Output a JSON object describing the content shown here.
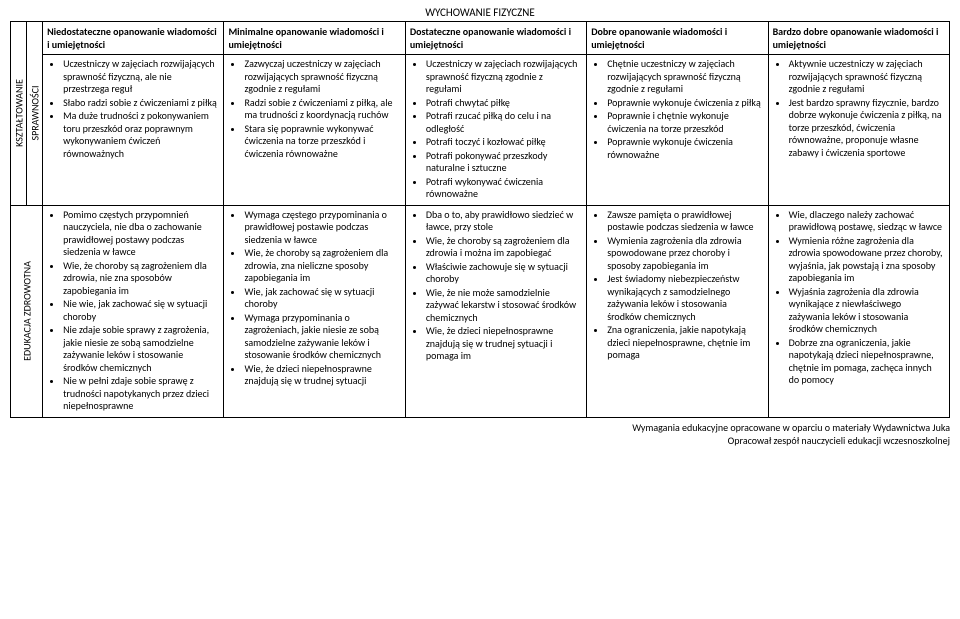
{
  "title": "WYCHOWANIE FIZYCZNE",
  "section_labels": {
    "row1a": "KSZTAŁTOWANIE",
    "row1b": "SPRAWNOŚCI",
    "row2": "EDUKACJA ZDROWOTNA"
  },
  "headers": {
    "c1": "Niedostateczne opanowanie wiadomości i umiejętności",
    "c2": "Minimalne opanowanie wiadomości i umiejętności",
    "c3": "Dostateczne opanowanie wiadomości i umiejętności",
    "c4": "Dobre opanowanie wiadomości i umiejętności",
    "c5": "Bardzo dobre opanowanie wiadomości i umiejętności"
  },
  "row1": {
    "c1": [
      "Uczestniczy w zajęciach rozwijających sprawność fizyczną, ale nie przestrzega reguł",
      "Słabo radzi sobie z ćwiczeniami z piłką",
      "Ma duże trudności z pokonywaniem toru przeszkód oraz poprawnym wykonywaniem ćwiczeń równoważnych"
    ],
    "c2": [
      "Zazwyczaj uczestniczy w zajęciach rozwijających sprawność fizyczną zgodnie z regułami",
      "Radzi sobie z ćwiczeniami z piłką, ale ma trudności z koordynacją ruchów",
      "Stara się poprawnie wykonywać ćwiczenia na torze przeszkód i ćwiczenia równoważne"
    ],
    "c3": [
      "Uczestniczy w zajęciach rozwijających sprawność fizyczną zgodnie z regułami",
      "Potrafi chwytać piłkę",
      "Potrafi rzucać piłką do celu i na odległość",
      "Potrafi toczyć i kozłować piłkę",
      "Potrafi pokonywać przeszkody naturalne i sztuczne",
      "Potrafi wykonywać ćwiczenia równoważne"
    ],
    "c4": [
      "Chętnie uczestniczy w zajęciach rozwijających sprawność fizyczną zgodnie z regułami",
      "Poprawnie wykonuje ćwiczenia z piłką",
      "Poprawnie i chętnie wykonuje ćwiczenia na torze przeszkód",
      "Poprawnie wykonuje ćwiczenia równoważne"
    ],
    "c5": [
      "Aktywnie uczestniczy w zajęciach rozwijających sprawność fizyczną zgodnie z regułami",
      "Jest bardzo sprawny fizycznie, bardzo dobrze wykonuje ćwiczenia z piłką, na torze przeszkód, ćwiczenia równoważne, proponuje własne zabawy i ćwiczenia sportowe"
    ]
  },
  "row2": {
    "c1": [
      "Pomimo częstych przypomnień nauczyciela, nie dba o zachowanie prawidłowej postawy podczas siedzenia w ławce",
      "Wie, że choroby są zagrożeniem dla zdrowia, nie zna sposobów zapobiegania im",
      "Nie wie, jak zachować się w sytuacji choroby",
      "Nie zdaje sobie sprawy z zagrożenia, jakie niesie ze sobą samodzielne zażywanie leków i stosowanie środków chemicznych",
      "Nie w pełni zdaje sobie sprawę z trudności napotykanych przez dzieci niepełnosprawne"
    ],
    "c2": [
      "Wymaga częstego przypominania o prawidłowej postawie podczas siedzenia w ławce",
      "Wie, że choroby są zagrożeniem dla zdrowia, zna nieliczne sposoby zapobiegania im",
      "Wie, jak zachować się w sytuacji choroby",
      "Wymaga przypominania o zagrożeniach, jakie niesie ze sobą samodzielne zażywanie leków i stosowanie środków chemicznych",
      "Wie, że dzieci niepełnosprawne znajdują się w trudnej sytuacji"
    ],
    "c3": [
      "Dba o to, aby prawidłowo siedzieć w ławce, przy stole",
      "Wie, że choroby są zagrożeniem dla zdrowia i można im zapobiegać",
      "Właściwie zachowuje się w sytuacji choroby",
      "Wie, że nie może samodzielnie zażywać lekarstw i stosować środków chemicznych",
      "Wie, że dzieci niepełnosprawne znajdują się w trudnej sytuacji i pomaga im"
    ],
    "c4": [
      "Zawsze pamięta o prawidłowej postawie podczas siedzenia w ławce",
      "Wymienia zagrożenia dla zdrowia spowodowane przez choroby i sposoby zapobiegania im",
      "Jest świadomy niebezpieczeństw wynikających z samodzielnego zażywania leków i stosowania środków chemicznych",
      "Zna ograniczenia, jakie napotykają dzieci niepełnosprawne, chętnie im pomaga"
    ],
    "c5": [
      "Wie, dlaczego należy zachować prawidłową postawę, siedząc w ławce",
      "Wymienia różne zagrożenia dla zdrowia spowodowane przez choroby, wyjaśnia, jak powstają i zna sposoby zapobiegania im",
      "Wyjaśnia zagrożenia dla zdrowia wynikające z niewłaściwego zażywania leków i stosowania środków chemicznych",
      "Dobrze zna ograniczenia, jakie napotykają dzieci niepełnosprawne, chętnie im pomaga, zachęca innych do pomocy"
    ]
  },
  "footer": {
    "line1": "Wymagania edukacyjne opracowane w oparciu o materiały Wydawnictwa Juka",
    "line2": "Opracował zespół nauczycieli edukacji wczesnoszkolnej"
  }
}
